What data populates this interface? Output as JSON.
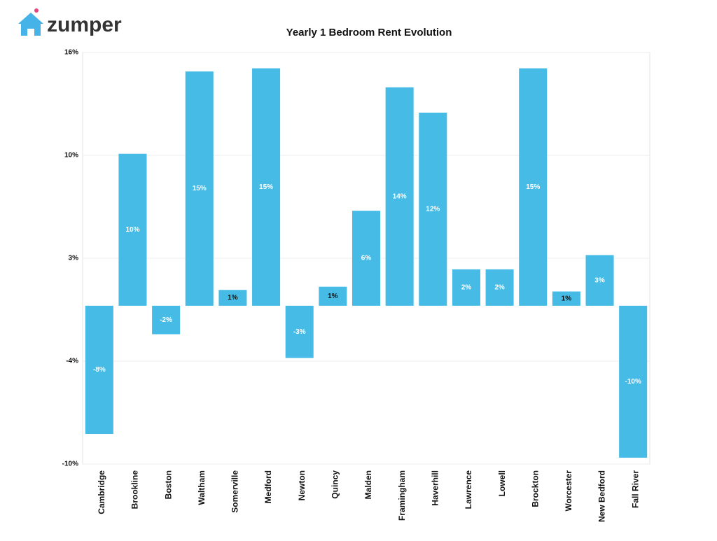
{
  "logo": "zumper",
  "chart_data": {
    "type": "bar",
    "title": "Yearly 1 Bedroom Rent Evolution",
    "categories": [
      "Cambridge",
      "Brookline",
      "Boston",
      "Waltham",
      "Somerville",
      "Medford",
      "Newton",
      "Quincy",
      "Malden",
      "Framingham",
      "Haverhill",
      "Lawrence",
      "Lowell",
      "Brockton",
      "Worcester",
      "New Bedford",
      "Fall River"
    ],
    "values": [
      -8.1,
      9.6,
      -1.8,
      14.8,
      1.0,
      15.0,
      -3.3,
      1.2,
      6.0,
      13.8,
      12.2,
      2.3,
      2.3,
      15.0,
      0.9,
      3.2,
      -9.6
    ],
    "value_labels": [
      "-8%",
      "10%",
      "-2%",
      "15%",
      "1%",
      "15%",
      "-3%",
      "1%",
      "6%",
      "14%",
      "12%",
      "2%",
      "2%",
      "15%",
      "1%",
      "3%",
      "-10%"
    ],
    "color": "#45bbe5",
    "ylim": [
      -10,
      16
    ],
    "yticks": [
      {
        "value": -10,
        "label": "-10%"
      },
      {
        "value": -3.5,
        "label": "-4%"
      },
      {
        "value": 3,
        "label": "3%"
      },
      {
        "value": 9.5,
        "label": "10%"
      },
      {
        "value": 16,
        "label": "16%"
      }
    ],
    "grid": true
  }
}
